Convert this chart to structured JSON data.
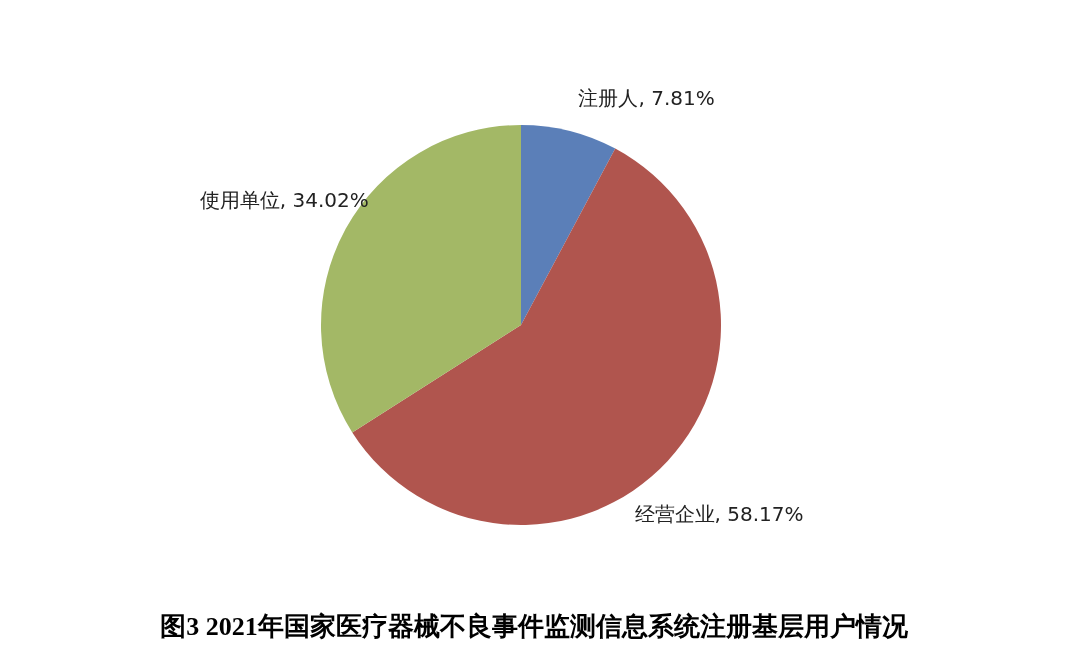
{
  "chart_data": {
    "type": "pie",
    "title": "图3  2021年国家医疗器械不良事件监测信息系统注册基层用户情况",
    "categories": [
      "注册人",
      "经营企业",
      "使用单位"
    ],
    "values": [
      7.81,
      58.17,
      34.02
    ],
    "value_labels": [
      "7.81%",
      "58.17%",
      "34.02%"
    ],
    "colors": [
      "#5b7fb8",
      "#b0554e",
      "#a3b866"
    ]
  }
}
